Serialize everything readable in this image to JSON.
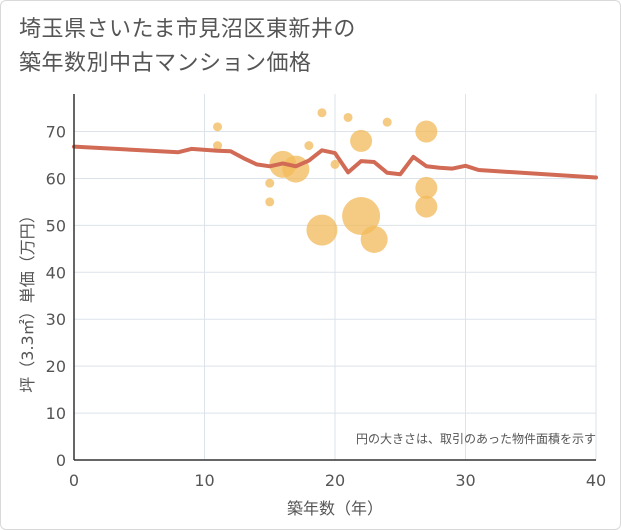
{
  "title_lines": [
    "埼玉県さいたま市見沼区東新井の",
    "築年数別中古マンション価格"
  ],
  "chart_data": {
    "type": "scatter",
    "xlabel": "築年数（年）",
    "ylabel": "坪（3.3㎡）単価（万円）",
    "xlim": [
      0,
      40
    ],
    "ylim": [
      0,
      78
    ],
    "x_ticks": [
      "0",
      "10",
      "20",
      "30",
      "40"
    ],
    "y_ticks": [
      "0",
      "10",
      "20",
      "30",
      "40",
      "50",
      "60",
      "70"
    ],
    "x_tick_values": [
      0,
      10,
      20,
      30,
      40
    ],
    "y_tick_values": [
      0,
      10,
      20,
      30,
      40,
      50,
      60,
      70
    ],
    "grid": true,
    "note": "円の大きさは、取引のあった物件面積を示す",
    "points": [
      {
        "x": 11,
        "y": 71,
        "size": 1
      },
      {
        "x": 11,
        "y": 67,
        "size": 1
      },
      {
        "x": 15,
        "y": 59,
        "size": 1
      },
      {
        "x": 15,
        "y": 55,
        "size": 1
      },
      {
        "x": 16,
        "y": 63,
        "size": 4
      },
      {
        "x": 17,
        "y": 62,
        "size": 4
      },
      {
        "x": 18,
        "y": 67,
        "size": 1
      },
      {
        "x": 19,
        "y": 74,
        "size": 1
      },
      {
        "x": 19,
        "y": 49,
        "size": 5
      },
      {
        "x": 20,
        "y": 63,
        "size": 1
      },
      {
        "x": 21,
        "y": 73,
        "size": 1
      },
      {
        "x": 22,
        "y": 68,
        "size": 3
      },
      {
        "x": 22,
        "y": 52,
        "size": 6
      },
      {
        "x": 23,
        "y": 47,
        "size": 4
      },
      {
        "x": 24,
        "y": 72,
        "size": 1
      },
      {
        "x": 27,
        "y": 70,
        "size": 3
      },
      {
        "x": 27,
        "y": 58,
        "size": 3
      },
      {
        "x": 27,
        "y": 54,
        "size": 3
      }
    ],
    "trend": {
      "x": [
        0,
        8,
        9,
        11,
        12,
        13,
        14,
        15,
        16,
        17,
        18,
        19,
        20,
        21,
        22,
        23,
        24,
        25,
        26,
        27,
        28,
        29,
        30,
        31,
        40
      ],
      "y": [
        66.8,
        65.6,
        66.3,
        65.9,
        65.8,
        64.3,
        63.0,
        62.6,
        63.2,
        62.6,
        63.8,
        66.0,
        65.4,
        61.3,
        63.7,
        63.5,
        61.2,
        60.9,
        64.6,
        62.6,
        62.3,
        62.1,
        62.7,
        61.8,
        60.2
      ]
    },
    "colors": {
      "points": "#f2b95a",
      "trend": "#d16b55",
      "grid": "#dce3ea"
    }
  }
}
